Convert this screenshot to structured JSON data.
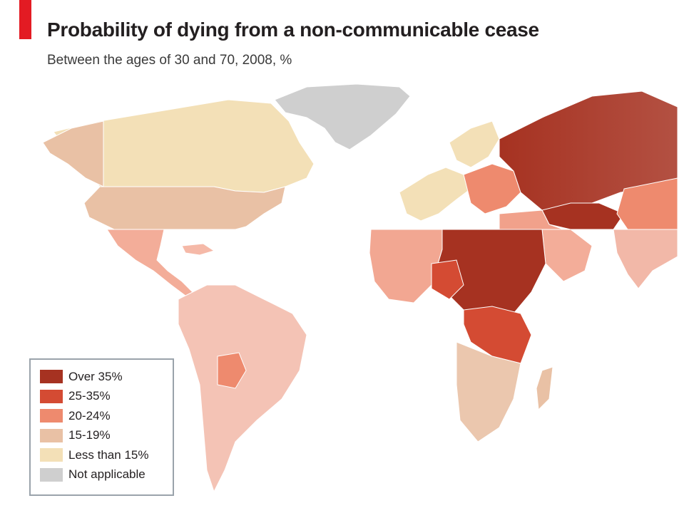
{
  "header": {
    "title": "Probability of dying from a non-communicable cease",
    "subtitle": "Between the ages of 30 and 70, 2008, %"
  },
  "colors": {
    "accent": "#e31b23",
    "over_35": "#a63221",
    "25_35": "#d44b33",
    "20_24": "#ee8a6e",
    "15_19": "#e9c1a5",
    "less_than_15": "#f3e0b7",
    "not_applicable": "#cfcfcf"
  },
  "legend": {
    "items": [
      {
        "label": "Over 35%",
        "color": "#a63221"
      },
      {
        "label": "25-35%",
        "color": "#d44b33"
      },
      {
        "label": "20-24%",
        "color": "#ee8a6e"
      },
      {
        "label": "15-19%",
        "color": "#e9c1a5"
      },
      {
        "label": "Less than 15%",
        "color": "#f3e0b7"
      },
      {
        "label": "Not applicable",
        "color": "#cfcfcf"
      }
    ]
  }
}
